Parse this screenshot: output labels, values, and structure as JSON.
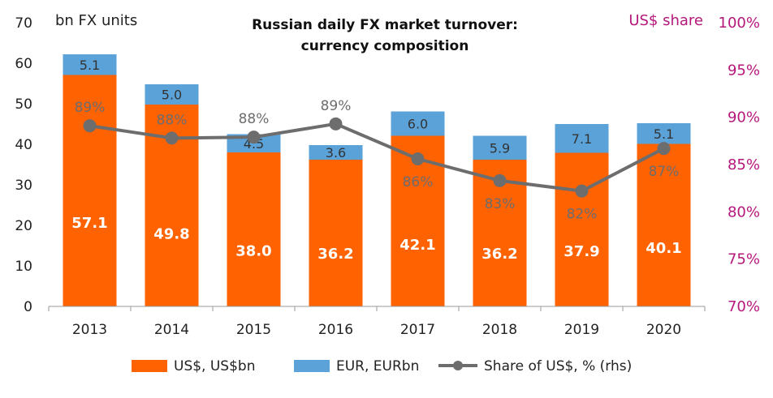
{
  "chart_data": {
    "type": "bar",
    "title_line1": "Russian daily FX market turnover:",
    "title_line2": "currency composition",
    "ylabel": "bn FX units",
    "y2label": "US$ share",
    "categories": [
      "2013",
      "2014",
      "2015",
      "2016",
      "2017",
      "2018",
      "2019",
      "2020"
    ],
    "series": [
      {
        "name": "US$, US$bn",
        "values": [
          57.1,
          49.8,
          38.0,
          36.2,
          42.1,
          36.2,
          37.9,
          40.1
        ],
        "labels": [
          "57.1",
          "49.8",
          "38.0",
          "36.2",
          "42.1",
          "36.2",
          "37.9",
          "40.1"
        ],
        "color": "#ff6200"
      },
      {
        "name": "EUR, EURbn",
        "values": [
          5.1,
          5.0,
          4.5,
          3.6,
          6.0,
          5.9,
          7.1,
          5.1
        ],
        "labels": [
          "5.1",
          "5.0",
          "4.5",
          "3.6",
          "6.0",
          "5.9",
          "7.1",
          "5.1"
        ],
        "color": "#5ba2d9"
      },
      {
        "name": "Share of US$, % (rhs)",
        "values": [
          89,
          88,
          88,
          89,
          86,
          83,
          82,
          87
        ],
        "plot_values": [
          89.1,
          87.8,
          87.9,
          89.3,
          85.6,
          83.3,
          82.2,
          86.7
        ],
        "labels": [
          "89%",
          "88%",
          "88%",
          "89%",
          "86%",
          "83%",
          "82%",
          "87%"
        ],
        "color": "#6d6d6d",
        "axis": "right"
      }
    ],
    "ylim": [
      0,
      70
    ],
    "yticks": [
      "0",
      "10",
      "20",
      "30",
      "40",
      "50",
      "60",
      "70"
    ],
    "y2lim": [
      70,
      100
    ],
    "y2ticks": [
      "70%",
      "75%",
      "80%",
      "85%",
      "90%",
      "95%",
      "100%"
    ],
    "grid": false,
    "legend_position": "bottom",
    "right_axis_color": "#b5177a"
  }
}
